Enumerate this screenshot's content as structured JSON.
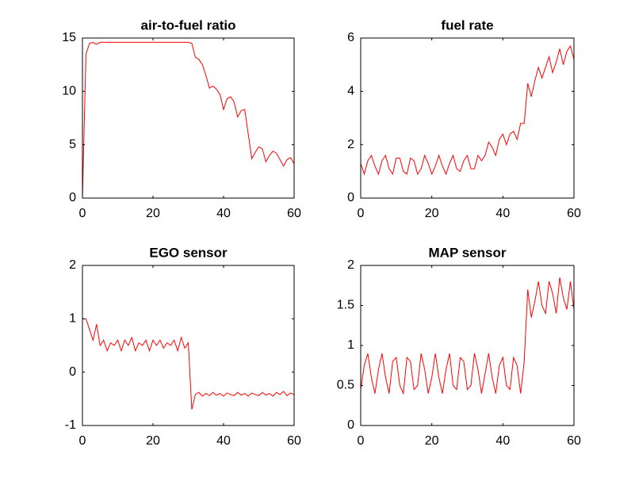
{
  "chart_data": [
    {
      "type": "line",
      "title": "air-to-fuel ratio",
      "x": [
        0,
        1,
        2,
        3,
        4,
        5,
        6,
        7,
        8,
        9,
        10,
        11,
        12,
        13,
        14,
        15,
        16,
        17,
        18,
        19,
        20,
        21,
        22,
        23,
        24,
        25,
        26,
        27,
        28,
        29,
        30,
        31,
        32,
        33,
        34,
        35,
        36,
        37,
        38,
        39,
        40,
        41,
        42,
        43,
        44,
        45,
        46,
        47,
        48,
        49,
        50,
        51,
        52,
        53,
        54,
        55,
        56,
        57,
        58,
        59,
        60
      ],
      "series": [
        {
          "color": "#ff0000",
          "values": [
            0,
            13.5,
            14.5,
            14.6,
            14.4,
            14.6,
            14.6,
            14.6,
            14.6,
            14.6,
            14.6,
            14.6,
            14.6,
            14.6,
            14.6,
            14.6,
            14.6,
            14.6,
            14.6,
            14.6,
            14.6,
            14.6,
            14.6,
            14.6,
            14.6,
            14.6,
            14.6,
            14.6,
            14.6,
            14.6,
            14.6,
            14.5,
            13.2,
            13,
            12.5,
            11.5,
            10.3,
            10.5,
            10.2,
            9.7,
            8.3,
            9.3,
            9.5,
            9,
            7.6,
            8.2,
            8.3,
            6,
            3.7,
            4.3,
            4.8,
            4.6,
            3.4,
            4,
            4.4,
            4.2,
            3.6,
            3,
            3.6,
            3.8,
            3.2
          ]
        }
      ],
      "xlim": [
        0,
        60
      ],
      "xticks": [
        0,
        20,
        40,
        60
      ],
      "ylim": [
        0,
        15
      ],
      "yticks": [
        0,
        5,
        10,
        15
      ]
    },
    {
      "type": "line",
      "title": "fuel rate",
      "x": [
        0,
        1,
        2,
        3,
        4,
        5,
        6,
        7,
        8,
        9,
        10,
        11,
        12,
        13,
        14,
        15,
        16,
        17,
        18,
        19,
        20,
        21,
        22,
        23,
        24,
        25,
        26,
        27,
        28,
        29,
        30,
        31,
        32,
        33,
        34,
        35,
        36,
        37,
        38,
        39,
        40,
        41,
        42,
        43,
        44,
        45,
        46,
        47,
        48,
        49,
        50,
        51,
        52,
        53,
        54,
        55,
        56,
        57,
        58,
        59,
        60
      ],
      "series": [
        {
          "color": "#ff0000",
          "values": [
            1.3,
            0.9,
            1.4,
            1.6,
            1.2,
            0.9,
            1.4,
            1.6,
            1.1,
            0.9,
            1.5,
            1.5,
            1,
            0.9,
            1.5,
            1.4,
            0.9,
            1.1,
            1.6,
            1.3,
            0.9,
            1.2,
            1.6,
            1.2,
            0.9,
            1.3,
            1.6,
            1.1,
            1,
            1.4,
            1.6,
            1.1,
            1.1,
            1.6,
            1.4,
            1.6,
            2.1,
            1.9,
            1.6,
            2.2,
            2.4,
            2,
            2.4,
            2.5,
            2.2,
            2.8,
            2.8,
            4.3,
            3.8,
            4.4,
            4.9,
            4.5,
            4.9,
            5.3,
            4.7,
            5.1,
            5.6,
            5,
            5.5,
            5.7,
            5.2
          ]
        }
      ],
      "xlim": [
        0,
        60
      ],
      "xticks": [
        0,
        20,
        40,
        60
      ],
      "ylim": [
        0,
        6
      ],
      "yticks": [
        0,
        2,
        4,
        6
      ]
    },
    {
      "type": "line",
      "title": "EGO sensor",
      "x": [
        0,
        1,
        2,
        3,
        4,
        5,
        6,
        7,
        8,
        9,
        10,
        11,
        12,
        13,
        14,
        15,
        16,
        17,
        18,
        19,
        20,
        21,
        22,
        23,
        24,
        25,
        26,
        27,
        28,
        29,
        30,
        31,
        32,
        33,
        34,
        35,
        36,
        37,
        38,
        39,
        40,
        41,
        42,
        43,
        44,
        45,
        46,
        47,
        48,
        49,
        50,
        51,
        52,
        53,
        54,
        55,
        56,
        57,
        58,
        59,
        60
      ],
      "series": [
        {
          "color": "#ff0000",
          "values": [
            1,
            1,
            0.8,
            0.6,
            0.9,
            0.5,
            0.6,
            0.4,
            0.55,
            0.5,
            0.6,
            0.4,
            0.6,
            0.5,
            0.65,
            0.4,
            0.55,
            0.5,
            0.6,
            0.4,
            0.6,
            0.5,
            0.6,
            0.45,
            0.55,
            0.5,
            0.6,
            0.4,
            0.65,
            0.45,
            0.55,
            -0.7,
            -0.42,
            -0.38,
            -0.45,
            -0.4,
            -0.44,
            -0.38,
            -0.43,
            -0.4,
            -0.45,
            -0.39,
            -0.42,
            -0.44,
            -0.38,
            -0.43,
            -0.4,
            -0.45,
            -0.39,
            -0.42,
            -0.44,
            -0.38,
            -0.43,
            -0.4,
            -0.45,
            -0.38,
            -0.42,
            -0.36,
            -0.44,
            -0.39,
            -0.42
          ]
        }
      ],
      "xlim": [
        0,
        60
      ],
      "xticks": [
        0,
        20,
        40,
        60
      ],
      "ylim": [
        -1,
        2
      ],
      "yticks": [
        -1,
        0,
        1,
        2
      ]
    },
    {
      "type": "line",
      "title": "MAP sensor",
      "x": [
        0,
        1,
        2,
        3,
        4,
        5,
        6,
        7,
        8,
        9,
        10,
        11,
        12,
        13,
        14,
        15,
        16,
        17,
        18,
        19,
        20,
        21,
        22,
        23,
        24,
        25,
        26,
        27,
        28,
        29,
        30,
        31,
        32,
        33,
        34,
        35,
        36,
        37,
        38,
        39,
        40,
        41,
        42,
        43,
        44,
        45,
        46,
        47,
        48,
        49,
        50,
        51,
        52,
        53,
        54,
        55,
        56,
        57,
        58,
        59,
        60
      ],
      "series": [
        {
          "color": "#ff0000",
          "values": [
            0.45,
            0.75,
            0.9,
            0.6,
            0.4,
            0.7,
            0.9,
            0.6,
            0.4,
            0.8,
            0.85,
            0.5,
            0.4,
            0.85,
            0.8,
            0.45,
            0.5,
            0.9,
            0.7,
            0.4,
            0.6,
            0.9,
            0.6,
            0.4,
            0.7,
            0.9,
            0.5,
            0.45,
            0.85,
            0.8,
            0.45,
            0.5,
            0.9,
            0.7,
            0.4,
            0.65,
            0.9,
            0.6,
            0.4,
            0.75,
            0.85,
            0.5,
            0.45,
            0.85,
            0.75,
            0.4,
            0.8,
            1.7,
            1.35,
            1.55,
            1.8,
            1.5,
            1.4,
            1.8,
            1.65,
            1.4,
            1.85,
            1.6,
            1.45,
            1.8,
            1.45
          ]
        }
      ],
      "xlim": [
        0,
        60
      ],
      "xticks": [
        0,
        20,
        40,
        60
      ],
      "ylim": [
        0,
        2
      ],
      "yticks": [
        0,
        0.5,
        1,
        1.5,
        2
      ]
    }
  ]
}
